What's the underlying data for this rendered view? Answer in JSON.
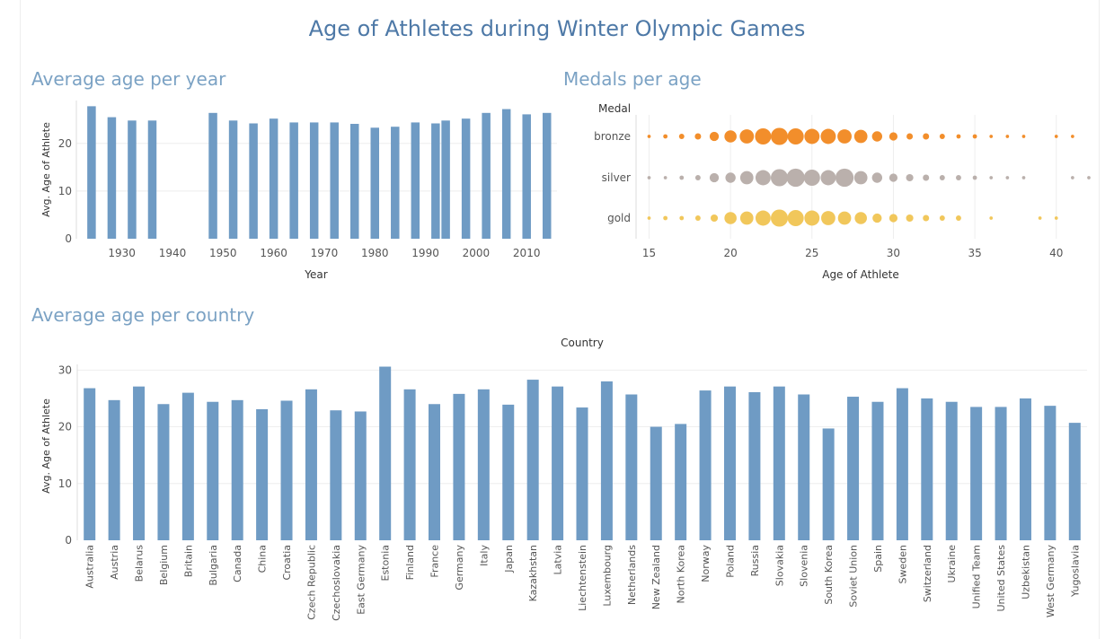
{
  "dashboard": {
    "title": "Age of Athletes during Winter Olympic Games",
    "sections": [
      "Average age per year",
      "Medals per age",
      "Average age per country"
    ]
  },
  "colors": {
    "bar": "#6f9bc4",
    "bronze": "#f28e2b",
    "silver": "#bab0ac",
    "gold": "#f1c75b",
    "grid": "#eeeeee",
    "axis_text": "#555555"
  },
  "chart_data": [
    {
      "type": "bar",
      "title": "Average age per year",
      "xlabel": "Year",
      "ylabel": "Avg. Age of Athlete",
      "xlim": [
        1921,
        2016
      ],
      "ylim": [
        0,
        29
      ],
      "xticks": [
        1930,
        1940,
        1950,
        1960,
        1970,
        1980,
        1990,
        2000,
        2010
      ],
      "yticks": [
        0,
        10,
        20
      ],
      "x": [
        1924,
        1928,
        1932,
        1936,
        1948,
        1952,
        1956,
        1960,
        1964,
        1968,
        1972,
        1976,
        1980,
        1984,
        1988,
        1992,
        1994,
        1998,
        2002,
        2006,
        2010,
        2014
      ],
      "values": [
        27.8,
        25.5,
        24.8,
        24.8,
        26.4,
        24.8,
        24.2,
        25.2,
        24.4,
        24.4,
        24.4,
        24.1,
        23.3,
        23.5,
        24.4,
        24.2,
        24.8,
        25.2,
        26.4,
        27.2,
        26.1,
        26.4
      ]
    },
    {
      "type": "scatter",
      "title": "Medals per age",
      "legend_title": "Medal",
      "xlabel": "Age of Athlete",
      "xlim": [
        14.2,
        42
      ],
      "xticks": [
        15,
        20,
        25,
        30,
        35,
        40
      ],
      "categories": [
        "bronze",
        "silver",
        "gold"
      ],
      "series": [
        {
          "name": "bronze",
          "x": [
            15,
            16,
            17,
            18,
            19,
            20,
            21,
            22,
            23,
            24,
            25,
            26,
            27,
            28,
            29,
            30,
            31,
            32,
            33,
            34,
            35,
            36,
            37,
            38,
            40,
            41
          ],
          "values": [
            1,
            2,
            3,
            4,
            7,
            10,
            12,
            14,
            15,
            14,
            13,
            13,
            12,
            11,
            8,
            6,
            4,
            4,
            3,
            2,
            2,
            1,
            1,
            1,
            1,
            1
          ]
        },
        {
          "name": "silver",
          "x": [
            15,
            16,
            17,
            18,
            19,
            20,
            21,
            22,
            23,
            24,
            25,
            26,
            27,
            28,
            29,
            30,
            31,
            32,
            33,
            34,
            35,
            36,
            37,
            38,
            41,
            42
          ],
          "values": [
            1,
            1,
            2,
            3,
            7,
            8,
            11,
            13,
            15,
            16,
            14,
            13,
            16,
            11,
            8,
            6,
            5,
            4,
            3,
            3,
            2,
            1,
            1,
            1,
            1,
            1
          ]
        },
        {
          "name": "gold",
          "x": [
            15,
            16,
            17,
            18,
            19,
            20,
            21,
            22,
            23,
            24,
            25,
            26,
            27,
            28,
            29,
            30,
            31,
            32,
            33,
            34,
            36,
            39,
            40
          ],
          "values": [
            1,
            2,
            2,
            3,
            5,
            10,
            11,
            13,
            15,
            14,
            13,
            12,
            11,
            10,
            7,
            6,
            5,
            4,
            3,
            3,
            1,
            1,
            1
          ]
        }
      ]
    },
    {
      "type": "bar",
      "title": "Average age per country",
      "xlabel": "Country",
      "ylabel": "Avg. Age of Athlete",
      "ylim": [
        0,
        31
      ],
      "yticks": [
        0,
        10,
        20,
        30
      ],
      "categories": [
        "Australia",
        "Austria",
        "Belarus",
        "Belgium",
        "Britain",
        "Bulgaria",
        "Canada",
        "China",
        "Croatia",
        "Czech Republic",
        "Czechoslovakia",
        "East Germany",
        "Estonia",
        "Finland",
        "France",
        "Germany",
        "Italy",
        "Japan",
        "Kazakhstan",
        "Latvia",
        "Liechtenstein",
        "Luxembourg",
        "Netherlands",
        "New Zealand",
        "North Korea",
        "Norway",
        "Poland",
        "Russia",
        "Slovakia",
        "Slovenia",
        "South Korea",
        "Soviet Union",
        "Spain",
        "Sweden",
        "Switzerland",
        "Ukraine",
        "Unified Team",
        "United States",
        "Uzbekistan",
        "West Germany",
        "Yugoslavia"
      ],
      "values": [
        26.8,
        24.7,
        27.1,
        24.0,
        26.0,
        24.4,
        24.7,
        23.1,
        24.6,
        26.6,
        22.9,
        22.7,
        30.6,
        26.6,
        24.0,
        25.8,
        26.6,
        23.9,
        28.3,
        27.1,
        23.4,
        28.0,
        25.7,
        20.0,
        20.5,
        26.4,
        27.1,
        26.1,
        27.1,
        25.7,
        19.7,
        25.3,
        24.4,
        26.8,
        25.0,
        24.4,
        23.5,
        23.5,
        25.0,
        23.7,
        20.7
      ]
    }
  ]
}
